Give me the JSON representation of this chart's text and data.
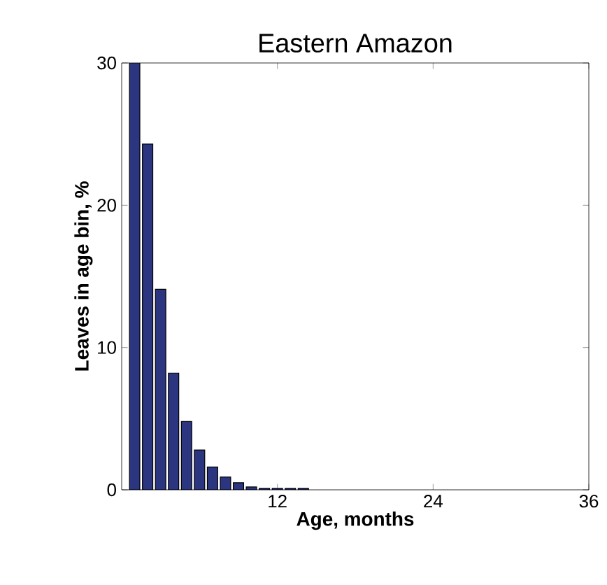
{
  "chart_data": {
    "type": "bar",
    "title": "Eastern Amazon",
    "xlabel": "Age, months",
    "ylabel": "Leaves in age bin, %",
    "x": [
      1,
      2,
      3,
      4,
      5,
      6,
      7,
      8,
      9,
      10,
      11,
      12,
      13,
      14
    ],
    "values": [
      30,
      24.3,
      14.1,
      8.2,
      4.8,
      2.8,
      1.6,
      0.9,
      0.5,
      0.2,
      0.1,
      0.1,
      0.1,
      0.1
    ],
    "color": "#2b3580",
    "xlim": [
      0,
      36
    ],
    "ylim": [
      0,
      30
    ],
    "xticks": [
      12,
      24,
      36
    ],
    "yticks": [
      0,
      10,
      20,
      30
    ],
    "grid": false
  }
}
